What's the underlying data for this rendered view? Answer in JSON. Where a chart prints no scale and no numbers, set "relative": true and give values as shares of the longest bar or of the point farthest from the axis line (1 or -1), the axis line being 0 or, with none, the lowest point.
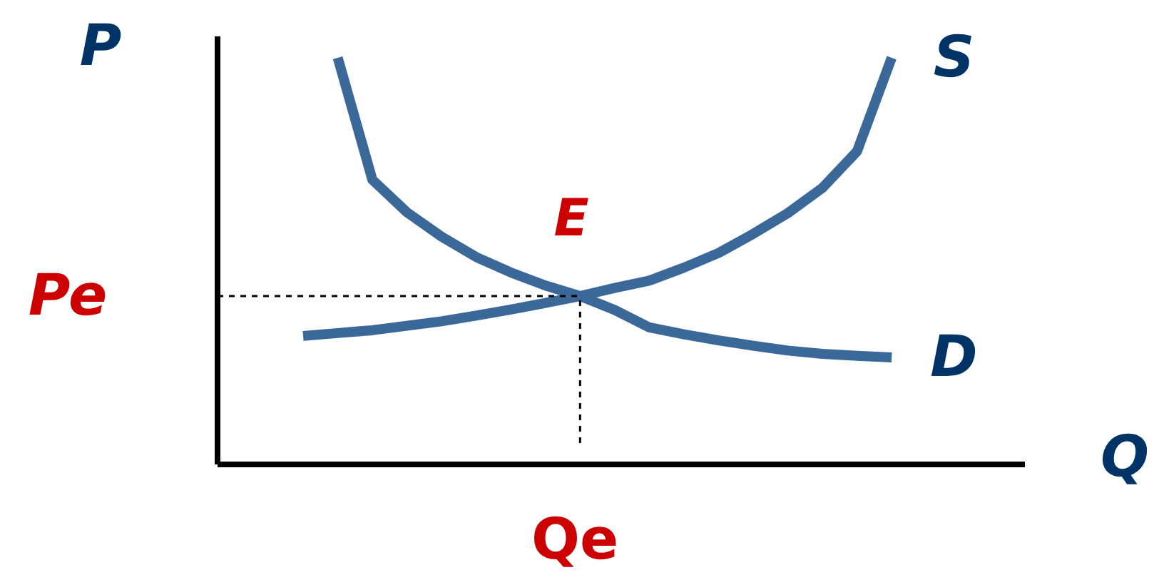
{
  "chart_data": {
    "type": "line",
    "relative": true,
    "xlabel": "Q",
    "ylabel": "P",
    "line_style": "solid",
    "categories": [
      null,
      null,
      null,
      null,
      null,
      null,
      null,
      null,
      null,
      null,
      null,
      null,
      null,
      null,
      null,
      null,
      null,
      null
    ],
    "series": [
      {
        "name": "S",
        "color": "#3a6898",
        "values": [
          0.316,
          0.323,
          0.33,
          0.341,
          0.352,
          0.366,
          0.381,
          0.397,
          0.414,
          0.434,
          0.452,
          0.484,
          0.52,
          0.567,
          0.618,
          0.68,
          0.77,
          1
        ]
      },
      {
        "name": "D",
        "color": "#3a6898",
        "values": [
          null,
          1,
          0.7,
          0.62,
          0.56,
          0.51,
          0.472,
          0.44,
          0.414,
          0.38,
          0.337,
          0.32,
          0.305,
          0.292,
          0.28,
          0.272,
          0.267,
          0.263
        ]
      }
    ],
    "ref_lines": [
      {
        "axis": "y",
        "value": 0.414,
        "label": "Pe",
        "color": "#000000",
        "line_style": "dashed"
      }
    ],
    "annotations": [
      {
        "text": "E",
        "y": 0.414
      },
      "Qe"
    ]
  }
}
